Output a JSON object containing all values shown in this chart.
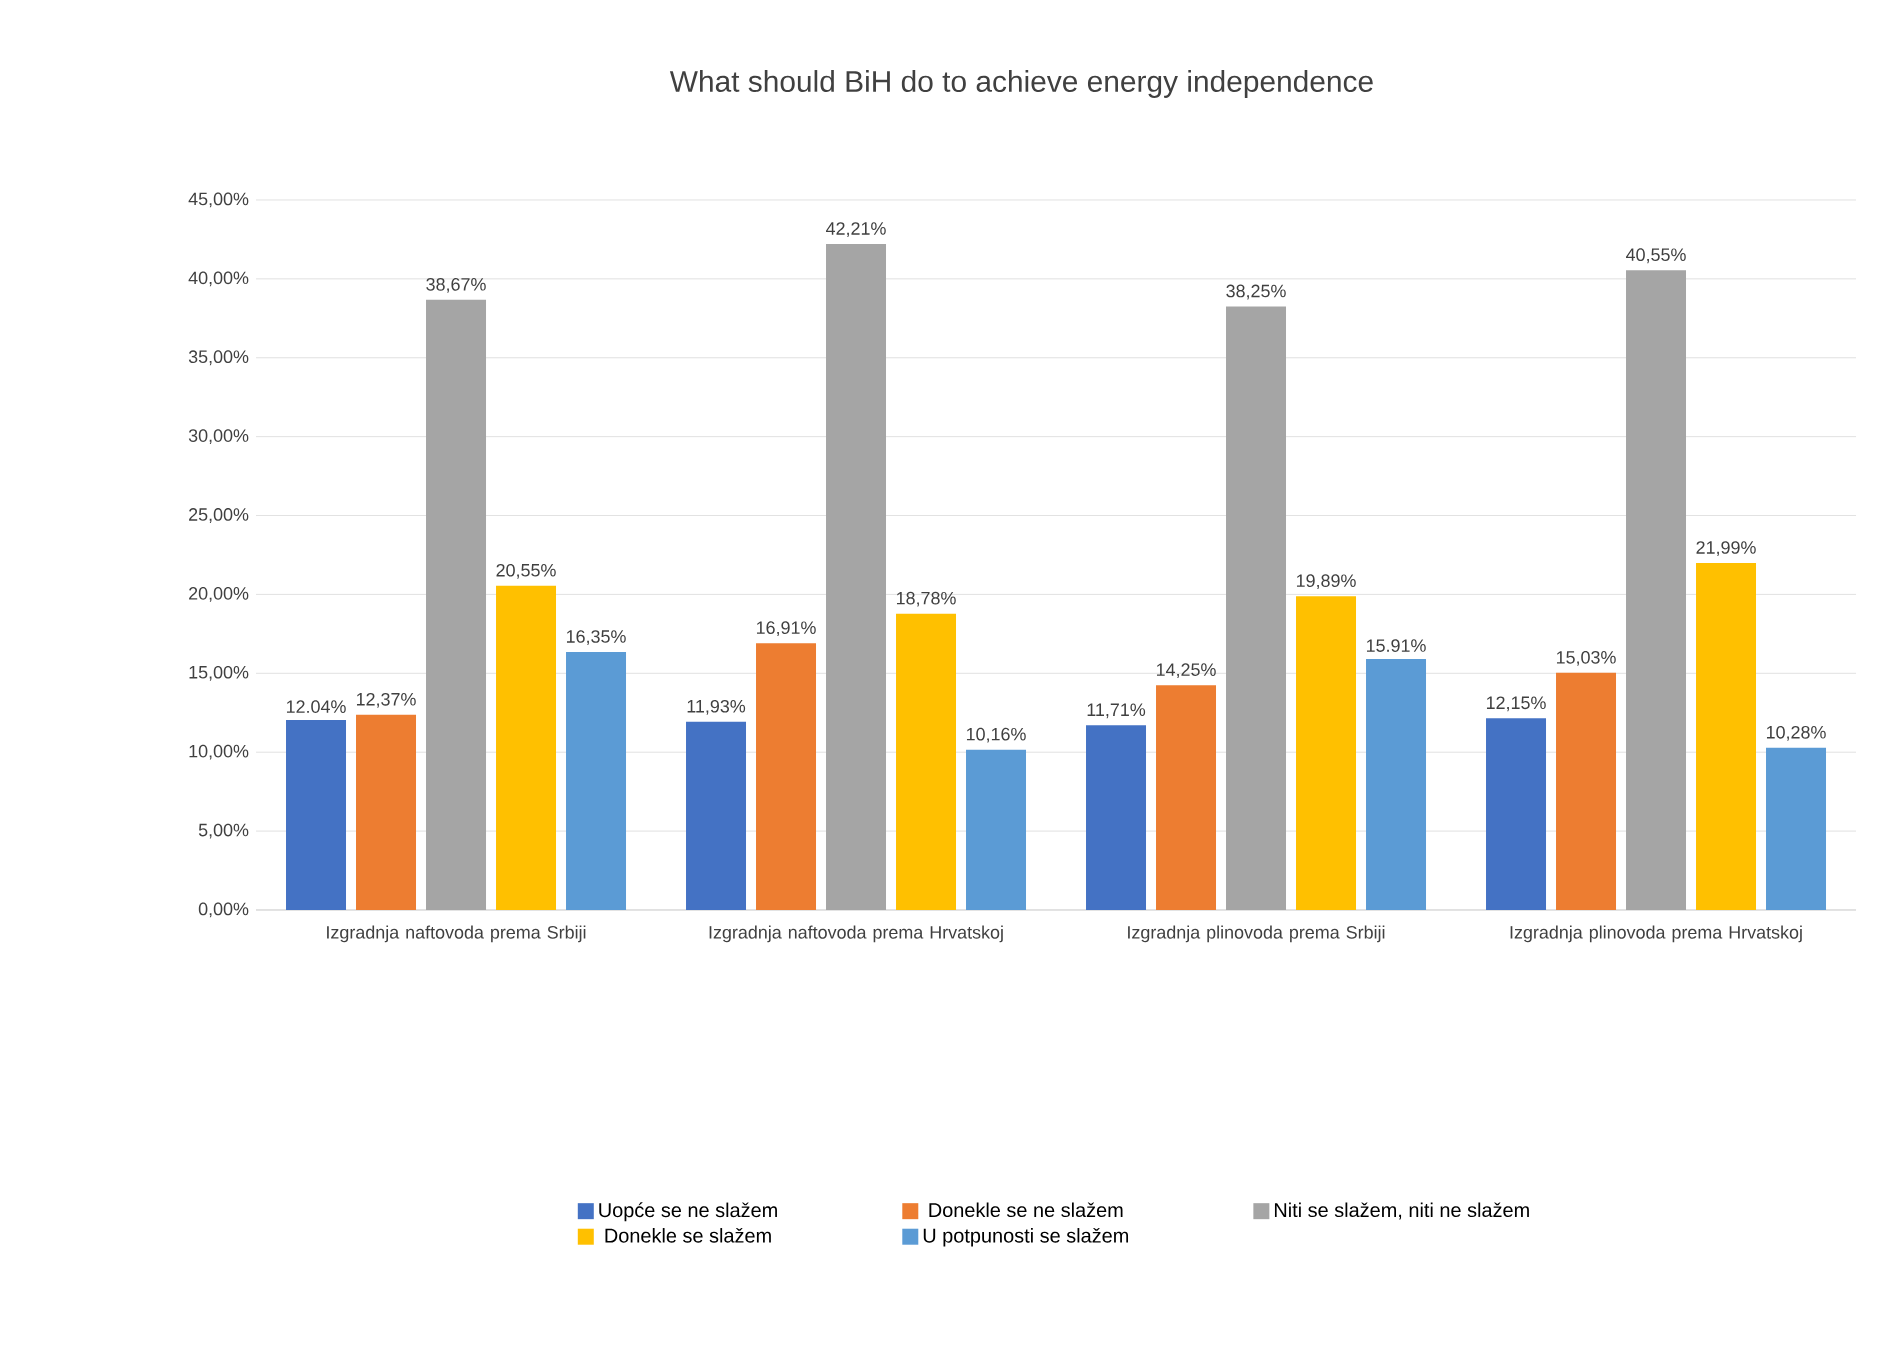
{
  "chart_data": {
    "type": "bar",
    "title": "What should BiH do to achieve energy independence",
    "categories": [
      "Izgradnja naftovoda prema Srbiji",
      "Izgradnja naftovoda prema Hrvatskoj",
      "Izgradnja plinovoda prema Srbiji",
      "Izgradnja plinovoda prema Hrvatskoj"
    ],
    "series": [
      {
        "name": "Uopće se ne slažem",
        "color": "#4472c4",
        "values": [
          12.04,
          11.93,
          11.71,
          12.15
        ],
        "value_labels": [
          "12.04%",
          "11,93%",
          "11,71%",
          "12,15%"
        ]
      },
      {
        "name": "Donekle se ne slažem",
        "color": "#ed7d31",
        "values": [
          12.37,
          16.91,
          14.25,
          15.03
        ],
        "value_labels": [
          "12,37%",
          "16,91%",
          "14,25%",
          "15,03%"
        ]
      },
      {
        "name": "Niti se slažem, niti ne slažem",
        "color": "#a5a5a5",
        "values": [
          38.67,
          42.21,
          38.25,
          40.55
        ],
        "value_labels": [
          "38,67%",
          "42,21%",
          "38,25%",
          "40,55%"
        ]
      },
      {
        "name": "Donekle se slažem",
        "color": "#ffc000",
        "values": [
          20.55,
          18.78,
          19.89,
          21.99
        ],
        "value_labels": [
          "20,55%",
          "18,78%",
          "19,89%",
          "21,99%"
        ]
      },
      {
        "name": "U potpunosti se slažem",
        "color": "#5b9bd5",
        "values": [
          16.35,
          10.16,
          15.91,
          10.28
        ],
        "value_labels": [
          "16,35%",
          "10,16%",
          "15.91%",
          "10,28%"
        ]
      }
    ],
    "ylim": [
      0,
      45
    ],
    "yticks": [
      {
        "value": 0,
        "label": "0,00%"
      },
      {
        "value": 5,
        "label": "5,00%"
      },
      {
        "value": 10,
        "label": "10,00%"
      },
      {
        "value": 15,
        "label": "15,00%"
      },
      {
        "value": 20,
        "label": "20,00%"
      },
      {
        "value": 25,
        "label": "25,00%"
      },
      {
        "value": 30,
        "label": "30,00%"
      },
      {
        "value": 35,
        "label": "35,00%"
      },
      {
        "value": 40,
        "label": "40,00%"
      },
      {
        "value": 45,
        "label": "45,00%"
      }
    ],
    "grid": "y",
    "legend": "bottom"
  }
}
